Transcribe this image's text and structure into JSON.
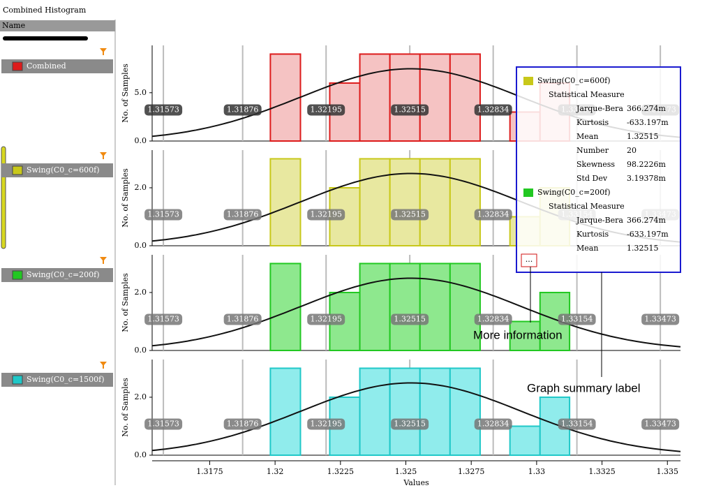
{
  "window": {
    "title": "Combined Histogram"
  },
  "sidebar": {
    "header": "Name",
    "items": [
      "Combined",
      "Swing(C0_c=600f)",
      "Swing(C0_c=200f)",
      "Swing(C0_c=1500f)"
    ]
  },
  "histogram": {
    "y_label": "No. of Samples",
    "x_label": "Values",
    "xlim": [
      1.3153,
      1.3355
    ],
    "xticks": [
      1.3175,
      1.32,
      1.3225,
      1.325,
      1.3275,
      1.33,
      1.3325,
      1.335
    ],
    "markers": [
      1.31573,
      1.31876,
      1.32195,
      1.32515,
      1.32834,
      1.33154,
      1.33473
    ],
    "bins": [
      1.31982,
      1.32097,
      1.32209,
      1.32324,
      1.32439,
      1.32554,
      1.32669,
      1.32784,
      1.32898,
      1.33013,
      1.33126
    ],
    "panels": [
      {
        "color": "#dd1c1c",
        "fill": "#f5c3c3",
        "counts": [
          9,
          0,
          6,
          9,
          9,
          9,
          9,
          0,
          3,
          6
        ],
        "ylim": [
          0,
          9.9
        ],
        "yticks": [
          {
            "value": 0,
            "label": "0.0"
          },
          {
            "value": 5,
            "label": "5.0"
          }
        ]
      },
      {
        "color": "#c8c81a",
        "fill": "#e8e8a0",
        "counts": [
          3,
          0,
          2,
          3,
          3,
          3,
          3,
          0,
          1,
          2
        ],
        "ylim": [
          0,
          3.3
        ],
        "yticks": [
          {
            "value": 0,
            "label": "0.0"
          },
          {
            "value": 2,
            "label": "2.0"
          }
        ]
      },
      {
        "color": "#22c822",
        "fill": "#8ee88e",
        "counts": [
          3,
          0,
          2,
          3,
          3,
          3,
          3,
          0,
          1,
          2
        ],
        "ylim": [
          0,
          3.3
        ],
        "yticks": [
          {
            "value": 0,
            "label": "0.0"
          },
          {
            "value": 2,
            "label": "2.0"
          }
        ]
      },
      {
        "color": "#20c8c8",
        "fill": "#90ecec",
        "counts": [
          3,
          0,
          2,
          3,
          3,
          3,
          3,
          0,
          1,
          2
        ],
        "ylim": [
          0,
          3.3
        ],
        "yticks": [
          {
            "value": 0,
            "label": "0.0"
          },
          {
            "value": 2,
            "label": "2.0"
          }
        ]
      }
    ]
  },
  "summary": {
    "series": [
      {
        "name": "Swing(C0_c=600f)",
        "color": "#c8c81a",
        "heading": "Statistical Measure",
        "rows": [
          [
            "Jarque-Bera",
            "366.274m"
          ],
          [
            "Kurtosis",
            "-633.197m"
          ],
          [
            "Mean",
            "1.32515"
          ],
          [
            "Number",
            "20"
          ],
          [
            "Skewness",
            "98.2226m"
          ],
          [
            "Std Dev",
            "3.19378m"
          ]
        ]
      },
      {
        "name": "Swing(C0_c=200f)",
        "color": "#22c822",
        "heading": "Statistical Measure",
        "rows": [
          [
            "Jarque-Bera",
            "366.274m"
          ],
          [
            "Kurtosis",
            "-633.197m"
          ],
          [
            "Mean",
            "1.32515"
          ]
        ]
      }
    ],
    "more": "..."
  },
  "annotations": {
    "more_info": "More information",
    "summary_label": "Graph summary label"
  }
}
